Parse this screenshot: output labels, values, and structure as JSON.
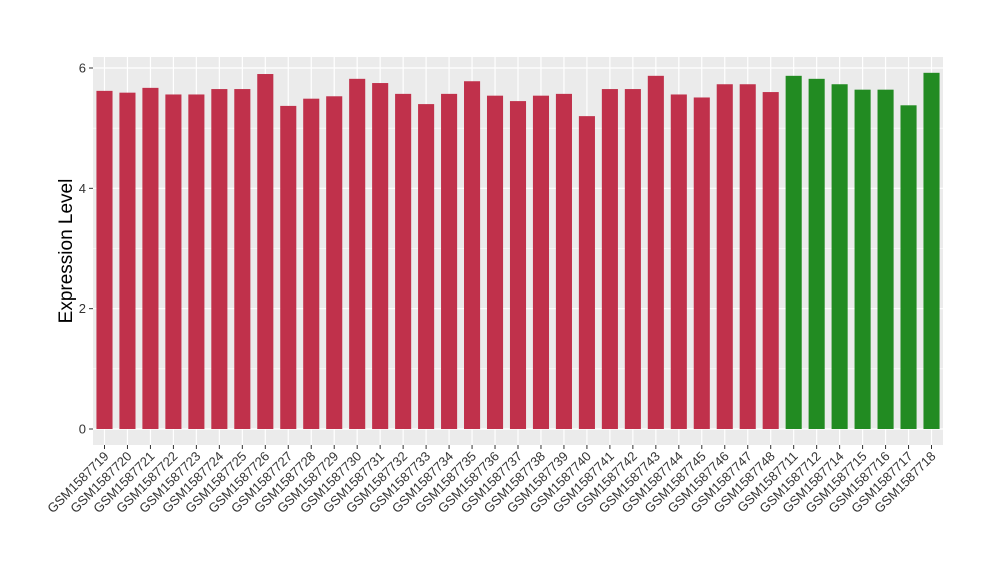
{
  "chart_data": {
    "type": "bar",
    "title": "",
    "xlabel": "",
    "ylabel": "Expression Level",
    "ylim": [
      0,
      6.3
    ],
    "yticks": [
      0,
      2,
      4,
      6
    ],
    "grid": true,
    "legend": "none",
    "panel_background": "#ebebeb",
    "grid_color": "#ffffff",
    "group_colors": {
      "red": "#c0314b",
      "green": "#228b22"
    },
    "categories": [
      "GSM1587719",
      "GSM1587720",
      "GSM1587721",
      "GSM1587722",
      "GSM1587723",
      "GSM1587724",
      "GSM1587725",
      "GSM1587726",
      "GSM1587727",
      "GSM1587728",
      "GSM1587729",
      "GSM1587730",
      "GSM1587731",
      "GSM1587732",
      "GSM1587733",
      "GSM1587734",
      "GSM1587735",
      "GSM1587736",
      "GSM1587737",
      "GSM1587738",
      "GSM1587739",
      "GSM1587740",
      "GSM1587741",
      "GSM1587742",
      "GSM1587743",
      "GSM1587744",
      "GSM1587745",
      "GSM1587746",
      "GSM1587747",
      "GSM1587748",
      "GSM1587711",
      "GSM1587712",
      "GSM1587714",
      "GSM1587715",
      "GSM1587716",
      "GSM1587717",
      "GSM1587718"
    ],
    "values": [
      5.62,
      5.59,
      5.67,
      5.56,
      5.56,
      5.65,
      5.65,
      5.9,
      5.37,
      5.49,
      5.53,
      5.82,
      5.75,
      5.57,
      5.4,
      5.57,
      5.78,
      5.54,
      5.45,
      5.54,
      5.57,
      5.2,
      5.65,
      5.65,
      5.87,
      5.56,
      5.51,
      5.73,
      5.73,
      5.6,
      5.87,
      5.82,
      5.73,
      5.64,
      5.64,
      5.38,
      5.92
    ],
    "colors": [
      "red",
      "red",
      "red",
      "red",
      "red",
      "red",
      "red",
      "red",
      "red",
      "red",
      "red",
      "red",
      "red",
      "red",
      "red",
      "red",
      "red",
      "red",
      "red",
      "red",
      "red",
      "red",
      "red",
      "red",
      "red",
      "red",
      "red",
      "red",
      "red",
      "red",
      "green",
      "green",
      "green",
      "green",
      "green",
      "green",
      "green"
    ]
  }
}
